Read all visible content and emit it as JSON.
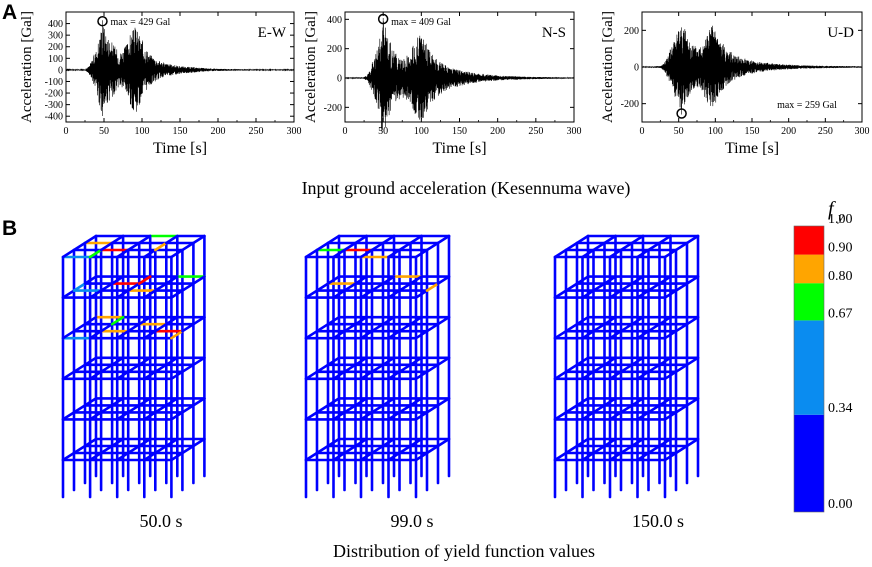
{
  "panel_a": {
    "letter": "A",
    "caption": "Input ground acceleration (Kesennuma wave)"
  },
  "panel_b": {
    "letter": "B",
    "caption": "Distribution of yield function values",
    "frames": [
      {
        "time_label": "50.0 s"
      },
      {
        "time_label": "99.0 s"
      },
      {
        "time_label": "150.0 s"
      }
    ],
    "colorbar": {
      "title": "f",
      "title_sub": "y",
      "bands": [
        {
          "from": 0.0,
          "to": 0.34,
          "color": "#0000ff"
        },
        {
          "from": 0.34,
          "to": 0.67,
          "color": "#0a8cf0"
        },
        {
          "from": 0.67,
          "to": 0.8,
          "color": "#00ff00"
        },
        {
          "from": 0.8,
          "to": 0.9,
          "color": "#ffa500"
        },
        {
          "from": 0.9,
          "to": 1.0,
          "color": "#ff0000"
        }
      ],
      "tick_labels": [
        "0.00",
        "0.34",
        "0.67",
        "0.80",
        "0.90",
        "1.00"
      ]
    }
  },
  "chart_data": [
    {
      "type": "line",
      "title": "E-W",
      "xlabel": "Time [s]",
      "ylabel": "Acceleration [Gal]",
      "xlim": [
        0,
        300
      ],
      "ylim": [
        -450,
        500
      ],
      "xticks": [
        0,
        50,
        100,
        150,
        200,
        250,
        300
      ],
      "yticks": [
        -400,
        -300,
        -200,
        -100,
        0,
        100,
        200,
        300,
        400
      ],
      "annotation": "max = 429 Gal",
      "peak": {
        "t": 48,
        "value": 429
      },
      "envelope": {
        "t": [
          0,
          25,
          30,
          40,
          48,
          55,
          62,
          70,
          78,
          85,
          92,
          100,
          110,
          120,
          130,
          140,
          155,
          170,
          185,
          200,
          220,
          250,
          300
        ],
        "amp": [
          4,
          6,
          30,
          180,
          429,
          300,
          230,
          150,
          200,
          320,
          380,
          260,
          140,
          90,
          60,
          45,
          30,
          22,
          14,
          10,
          7,
          5,
          4
        ]
      }
    },
    {
      "type": "line",
      "title": "N-S",
      "xlabel": "Time [s]",
      "ylabel": "Acceleration [Gal]",
      "xlim": [
        0,
        300
      ],
      "ylim": [
        -300,
        450
      ],
      "xticks": [
        0,
        50,
        100,
        150,
        200,
        250,
        300
      ],
      "yticks": [
        -200,
        0,
        200,
        400
      ],
      "annotation": "max = 409 Gal",
      "peak": {
        "t": 50,
        "value": 409
      },
      "envelope": {
        "t": [
          0,
          25,
          30,
          40,
          50,
          58,
          66,
          75,
          85,
          92,
          100,
          110,
          120,
          135,
          150,
          170,
          190,
          210,
          240,
          270,
          300
        ],
        "amp": [
          4,
          6,
          25,
          160,
          409,
          260,
          170,
          130,
          170,
          260,
          300,
          200,
          130,
          80,
          55,
          35,
          22,
          14,
          9,
          6,
          4
        ]
      }
    },
    {
      "type": "line",
      "title": "U-D",
      "xlabel": "Time [s]",
      "ylabel": "Acceleration [Gal]",
      "xlim": [
        0,
        300
      ],
      "ylim": [
        -300,
        300
      ],
      "xticks": [
        0,
        50,
        100,
        150,
        200,
        250,
        300
      ],
      "yticks": [
        -200,
        0,
        200
      ],
      "annotation": "max = 259 Gal",
      "peak": {
        "t": 54,
        "value": -259
      },
      "envelope": {
        "t": [
          0,
          25,
          30,
          40,
          54,
          62,
          70,
          78,
          88,
          96,
          105,
          115,
          130,
          145,
          165,
          190,
          220,
          260,
          300
        ],
        "amp": [
          3,
          5,
          20,
          110,
          259,
          180,
          120,
          110,
          200,
          230,
          160,
          100,
          60,
          40,
          25,
          15,
          9,
          6,
          4
        ]
      }
    }
  ]
}
